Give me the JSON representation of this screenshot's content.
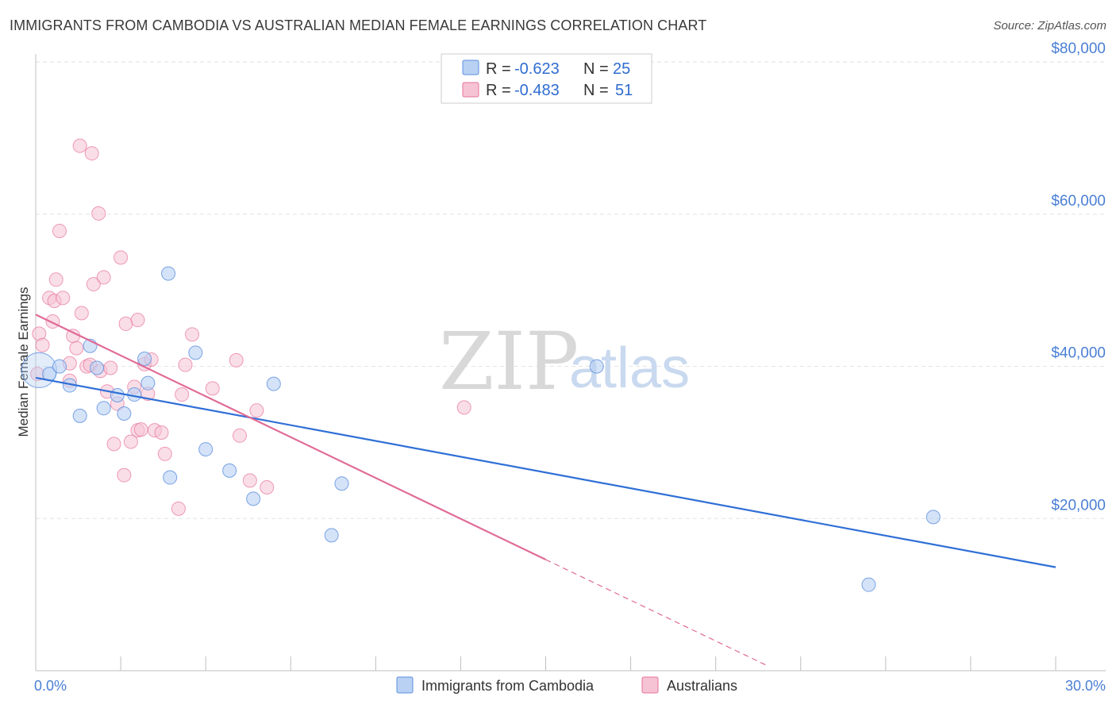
{
  "title": "IMMIGRANTS FROM CAMBODIA VS AUSTRALIAN MEDIAN FEMALE EARNINGS CORRELATION CHART",
  "source": "Source: ZipAtlas.com",
  "watermark": {
    "zip": "ZIP",
    "atlas": "atlas"
  },
  "colors": {
    "blue": "#5b8fe0",
    "blue_fill": "#b9d1f3",
    "pink": "#e7739b",
    "pink_fill": "#f6c3d4",
    "blue_line": "#2f6fd6",
    "pink_line": "#e06a96"
  },
  "legend": {
    "rows": [
      {
        "r_label": "R =",
        "r_value": "-0.623",
        "n_label": "N =",
        "n_value": "25"
      },
      {
        "r_label": "R =",
        "r_value": "-0.483",
        "n_label": "N =",
        "n_value": "51"
      }
    ]
  },
  "bottom_legend": [
    "Immigrants from Cambodia",
    "Australians"
  ],
  "chart_data": {
    "type": "scatter",
    "xlabel": "",
    "ylabel": "Median Female Earnings",
    "xlim": [
      0,
      30
    ],
    "ylim": [
      0,
      82000
    ],
    "x_tick_labels": [
      {
        "value": 0,
        "label": "0.0%"
      },
      {
        "value": 30,
        "label": "30.0%"
      }
    ],
    "y_tick_labels": [
      {
        "value": 20000,
        "label": "$20,000"
      },
      {
        "value": 40000,
        "label": "$40,000"
      },
      {
        "value": 60000,
        "label": "$60,000"
      },
      {
        "value": 80000,
        "label": "$80,000"
      }
    ],
    "series": [
      {
        "name": "Immigrants from Cambodia",
        "points": [
          [
            0.1,
            39500
          ],
          [
            0.4,
            39000
          ],
          [
            0.7,
            40000
          ],
          [
            1.0,
            37500
          ],
          [
            1.3,
            33500
          ],
          [
            1.6,
            42700
          ],
          [
            1.8,
            39800
          ],
          [
            2.0,
            34500
          ],
          [
            2.4,
            36200
          ],
          [
            2.6,
            33800
          ],
          [
            2.9,
            36300
          ],
          [
            3.2,
            41000
          ],
          [
            3.3,
            37800
          ],
          [
            3.9,
            52200
          ],
          [
            3.95,
            25400
          ],
          [
            4.7,
            41800
          ],
          [
            5.0,
            29100
          ],
          [
            5.7,
            26300
          ],
          [
            6.4,
            22600
          ],
          [
            7.0,
            37700
          ],
          [
            8.7,
            17800
          ],
          [
            9.0,
            24600
          ],
          [
            16.5,
            40000
          ],
          [
            24.5,
            11300
          ],
          [
            26.4,
            20200
          ]
        ],
        "trend": {
          "x": [
            0,
            30
          ],
          "y": [
            38500,
            13600
          ]
        }
      },
      {
        "name": "Australians",
        "points": [
          [
            0.05,
            39000
          ],
          [
            0.1,
            44300
          ],
          [
            0.2,
            42800
          ],
          [
            0.4,
            49000
          ],
          [
            0.5,
            45900
          ],
          [
            0.55,
            48600
          ],
          [
            0.6,
            51400
          ],
          [
            0.7,
            57800
          ],
          [
            0.8,
            49000
          ],
          [
            1.0,
            40400
          ],
          [
            1.0,
            38100
          ],
          [
            1.1,
            44000
          ],
          [
            1.2,
            42400
          ],
          [
            1.3,
            69000
          ],
          [
            1.35,
            47000
          ],
          [
            1.5,
            40000
          ],
          [
            1.6,
            40200
          ],
          [
            1.65,
            68000
          ],
          [
            1.7,
            50800
          ],
          [
            1.85,
            60100
          ],
          [
            1.9,
            39400
          ],
          [
            2.0,
            51700
          ],
          [
            2.1,
            36700
          ],
          [
            2.2,
            39800
          ],
          [
            2.3,
            29800
          ],
          [
            2.4,
            35100
          ],
          [
            2.5,
            54300
          ],
          [
            2.6,
            25700
          ],
          [
            2.65,
            45600
          ],
          [
            2.8,
            30100
          ],
          [
            2.9,
            37300
          ],
          [
            3.0,
            46100
          ],
          [
            3.0,
            31600
          ],
          [
            3.1,
            31700
          ],
          [
            3.2,
            40300
          ],
          [
            3.3,
            36400
          ],
          [
            3.4,
            40900
          ],
          [
            3.5,
            31600
          ],
          [
            3.7,
            31300
          ],
          [
            3.8,
            28500
          ],
          [
            4.2,
            21300
          ],
          [
            4.3,
            36300
          ],
          [
            4.4,
            40200
          ],
          [
            4.6,
            44200
          ],
          [
            5.2,
            37100
          ],
          [
            5.9,
            40800
          ],
          [
            6.0,
            30900
          ],
          [
            6.3,
            25000
          ],
          [
            6.5,
            34200
          ],
          [
            6.8,
            24100
          ],
          [
            12.6,
            34600
          ]
        ],
        "trend": {
          "x": [
            0,
            15
          ],
          "y": [
            46800,
            14600
          ]
        },
        "trend_dashed": {
          "x": [
            15,
            21.5
          ],
          "y": [
            14600,
            700
          ]
        }
      }
    ]
  }
}
